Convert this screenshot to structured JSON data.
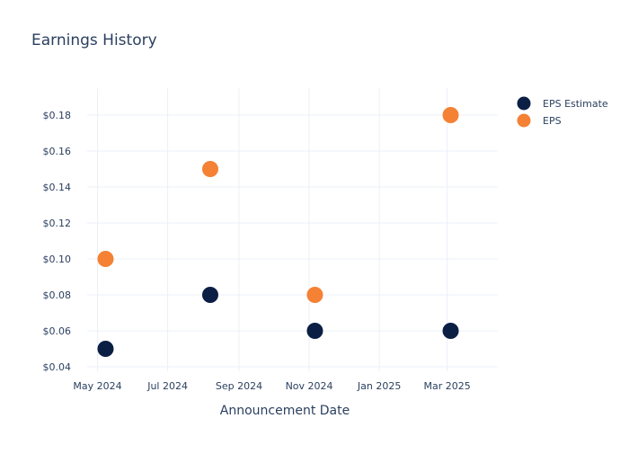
{
  "chart_data": {
    "type": "scatter",
    "title": "Earnings History",
    "xlabel": "Announcement Date",
    "ylabel": "",
    "x_ticks": [
      {
        "date": "2024-05-01",
        "label": "May 2024"
      },
      {
        "date": "2024-07-01",
        "label": "Jul 2024"
      },
      {
        "date": "2024-09-01",
        "label": "Sep 2024"
      },
      {
        "date": "2024-11-01",
        "label": "Nov 2024"
      },
      {
        "date": "2025-01-01",
        "label": "Jan 2025"
      },
      {
        "date": "2025-03-01",
        "label": "Mar 2025"
      }
    ],
    "xlim": [
      "2024-04-22",
      "2025-04-14"
    ],
    "y_ticks": [
      {
        "value": 0.04,
        "label": "$0.04"
      },
      {
        "value": 0.06,
        "label": "$0.06"
      },
      {
        "value": 0.08,
        "label": "$0.08"
      },
      {
        "value": 0.1,
        "label": "$0.10"
      },
      {
        "value": 0.12,
        "label": "$0.12"
      },
      {
        "value": 0.14,
        "label": "$0.14"
      },
      {
        "value": 0.16,
        "label": "$0.16"
      },
      {
        "value": 0.18,
        "label": "$0.18"
      }
    ],
    "ylim": [
      0.0375,
      0.195
    ],
    "grid": true,
    "legend_position": "top-right",
    "series": [
      {
        "name": "EPS Estimate",
        "color": "#0b1f44",
        "points": [
          {
            "x": "2024-05-08",
            "y": 0.05
          },
          {
            "x": "2024-08-07",
            "y": 0.08
          },
          {
            "x": "2024-11-06",
            "y": 0.06
          },
          {
            "x": "2025-03-04",
            "y": 0.06
          }
        ]
      },
      {
        "name": "EPS",
        "color": "#f58134",
        "points": [
          {
            "x": "2024-05-08",
            "y": 0.1
          },
          {
            "x": "2024-08-07",
            "y": 0.15
          },
          {
            "x": "2024-11-06",
            "y": 0.08
          },
          {
            "x": "2025-03-04",
            "y": 0.18
          }
        ]
      }
    ]
  }
}
